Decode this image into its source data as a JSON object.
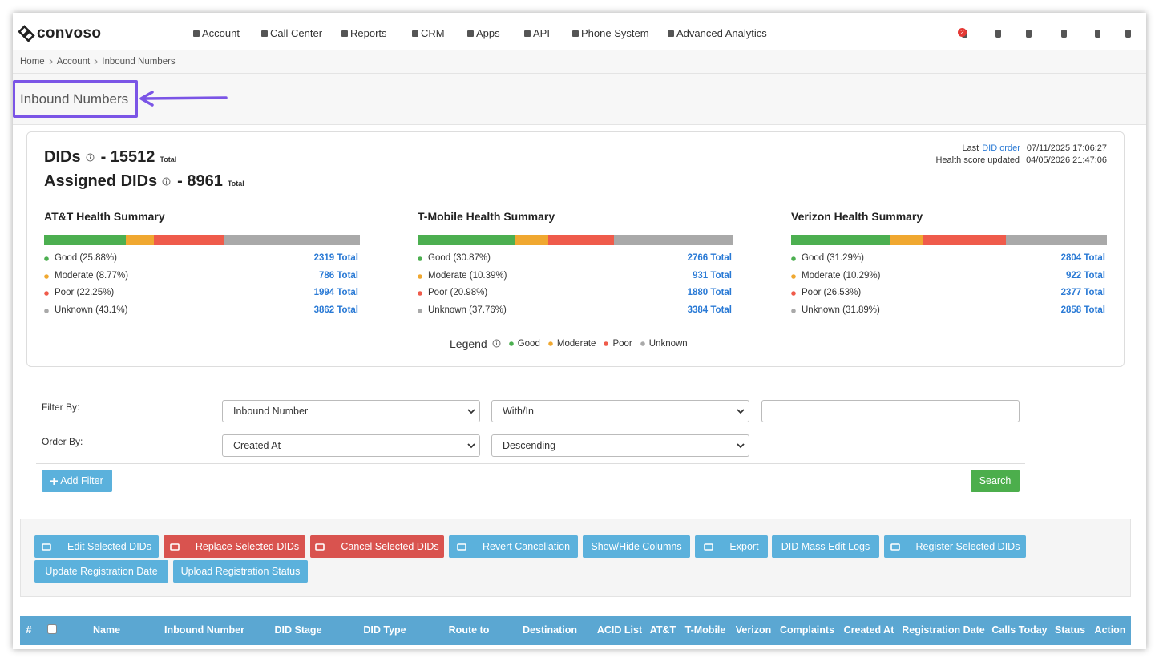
{
  "nav": {
    "brand": "convoso",
    "menu": [
      "Account",
      "Call Center",
      "Reports",
      "CRM",
      "Apps",
      "API",
      "Phone System",
      "Advanced Analytics"
    ],
    "notification_count": "2"
  },
  "breadcrumb": [
    "Home",
    "Account",
    "Inbound Numbers"
  ],
  "page_title": "Inbound Numbers",
  "summary": {
    "dids_label": "DIDs",
    "dids_value": "- 15512",
    "dids_suffix": "Total",
    "assigned_label": "Assigned DIDs",
    "assigned_value": "- 8961",
    "assigned_suffix": "Total",
    "last_order_prefix": "Last",
    "last_order_link": "DID order",
    "last_order_date": "07/11/2025 17:06:27",
    "health_label": "Health score updated",
    "health_date": "04/05/2026 21:47:06",
    "carriers": [
      {
        "title": "AT&T Health Summary",
        "segments": [
          {
            "label": "Good (25.88%)",
            "percent": 25.88,
            "total": "2319 Total",
            "color": "#4caf50"
          },
          {
            "label": "Moderate (8.77%)",
            "percent": 8.77,
            "total": "786 Total",
            "color": "#f0a830"
          },
          {
            "label": "Poor (22.25%)",
            "percent": 22.25,
            "total": "1994 Total",
            "color": "#ef5b4b"
          },
          {
            "label": "Unknown (43.1%)",
            "percent": 43.1,
            "total": "3862 Total",
            "color": "#a9a9a9"
          }
        ]
      },
      {
        "title": "T-Mobile Health Summary",
        "segments": [
          {
            "label": "Good (30.87%)",
            "percent": 30.87,
            "total": "2766 Total",
            "color": "#4caf50"
          },
          {
            "label": "Moderate (10.39%)",
            "percent": 10.39,
            "total": "931 Total",
            "color": "#f0a830"
          },
          {
            "label": "Poor (20.98%)",
            "percent": 20.98,
            "total": "1880 Total",
            "color": "#ef5b4b"
          },
          {
            "label": "Unknown (37.76%)",
            "percent": 37.76,
            "total": "3384 Total",
            "color": "#a9a9a9"
          }
        ]
      },
      {
        "title": "Verizon Health Summary",
        "segments": [
          {
            "label": "Good (31.29%)",
            "percent": 31.29,
            "total": "2804 Total",
            "color": "#4caf50"
          },
          {
            "label": "Moderate (10.29%)",
            "percent": 10.29,
            "total": "922 Total",
            "color": "#f0a830"
          },
          {
            "label": "Poor (26.53%)",
            "percent": 26.53,
            "total": "2377 Total",
            "color": "#ef5b4b"
          },
          {
            "label": "Unknown (31.89%)",
            "percent": 31.89,
            "total": "2858 Total",
            "color": "#a9a9a9"
          }
        ]
      }
    ],
    "legend": {
      "title": "Legend",
      "items": [
        {
          "label": "Good",
          "color": "#4caf50"
        },
        {
          "label": "Moderate",
          "color": "#f0a830"
        },
        {
          "label": "Poor",
          "color": "#ef5b4b"
        },
        {
          "label": "Unknown",
          "color": "#a9a9a9"
        }
      ]
    }
  },
  "filters": {
    "filter_label": "Filter By:",
    "filter_field": "Inbound Number",
    "filter_op": "With/In",
    "order_label": "Order By:",
    "order_field": "Created At",
    "order_dir": "Descending",
    "add_filter": "Add Filter",
    "search": "Search"
  },
  "actions": [
    {
      "label": "Edit Selected DIDs",
      "style": "info"
    },
    {
      "label": "Replace Selected DIDs",
      "style": "danger"
    },
    {
      "label": "Cancel Selected DIDs",
      "style": "danger"
    },
    {
      "label": "Revert Cancellation",
      "style": "info"
    },
    {
      "label": "Show/Hide Columns",
      "style": "info"
    },
    {
      "label": "Export",
      "style": "info"
    },
    {
      "label": "DID Mass Edit Logs",
      "style": "info"
    },
    {
      "label": "Register Selected DIDs",
      "style": "info"
    },
    {
      "label": "Update Registration Date",
      "style": "info"
    },
    {
      "label": "Upload Registration Status",
      "style": "info"
    }
  ],
  "table": {
    "columns": [
      "#",
      "Name",
      "Inbound Number",
      "DID Stage",
      "DID Type",
      "Route to",
      "Destination",
      "ACID List",
      "AT&T",
      "T-Mobile",
      "Verizon",
      "Complaints",
      "Created At",
      "Registration Date",
      "Calls Today",
      "Status",
      "Action"
    ]
  }
}
